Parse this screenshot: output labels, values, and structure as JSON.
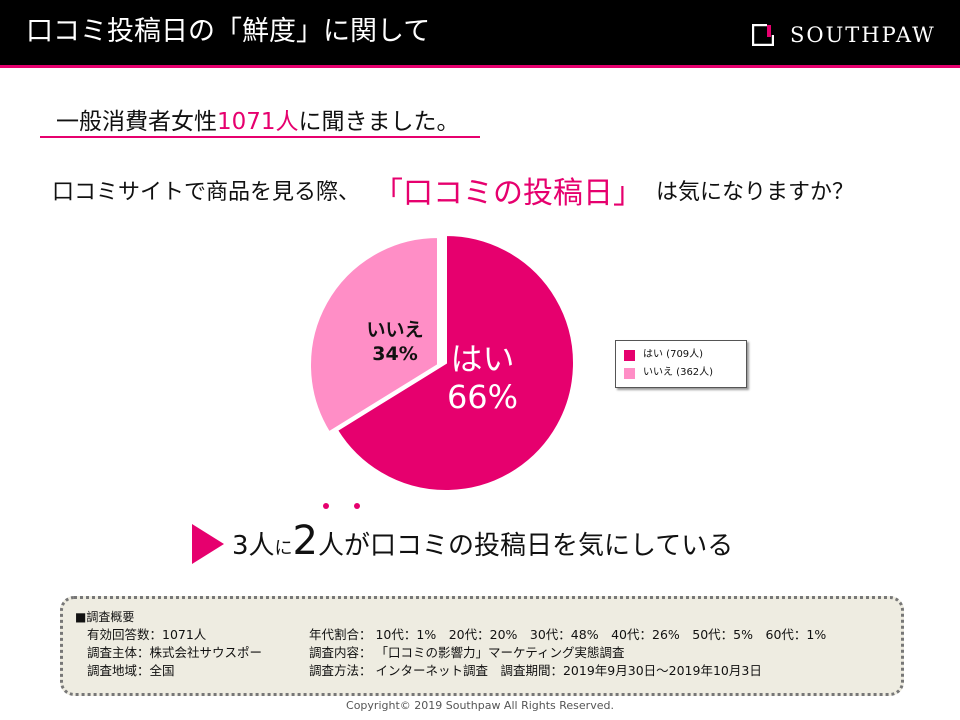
{
  "header": {
    "title": "口コミ投稿日の「鮮度」に関して",
    "brand": "SOUTHPAW"
  },
  "subhead": {
    "prefix": "一般消費者女性",
    "count": "1071人",
    "suffix": "に聞きました。"
  },
  "question": {
    "prefix": "口コミサイトで商品を見る際、",
    "highlight": "「口コミの投稿日」",
    "suffix": "は気になりますか？"
  },
  "colors": {
    "accent": "#e6006e",
    "yes": "#e6006e",
    "no": "#ff8ec6"
  },
  "chart_data": {
    "type": "pie",
    "slices": [
      {
        "label": "はい",
        "value": 709,
        "percent_label": "66%",
        "legend": "はい (709人)",
        "color": "#e6006e"
      },
      {
        "label": "いいえ",
        "value": 362,
        "percent_label": "34%",
        "legend": "いいえ (362人)",
        "color": "#ff8ec6"
      }
    ]
  },
  "conclusion": {
    "part1": "3人",
    "part2": "に",
    "part3": "2",
    "part4": "人",
    "part5": "が口コミの投稿日を気にしている"
  },
  "survey": {
    "title": "■調査概要",
    "left": [
      "有効回答数：1071人",
      "調査主体：株式会社サウスポー",
      "調査地域：全国"
    ],
    "right": [
      "年代割合：  10代：1%　20代：20%　30代：48%　40代：26%　50代：5%　60代：1%",
      "調査内容：  「口コミの影響力」マーケティング実態調査",
      "調査方法：  インターネット調査　調査期間：2019年9月30日～2019年10月3日"
    ]
  },
  "footer": {
    "copyright": "Copyright© 2019 Southpaw All Rights Reserved."
  }
}
